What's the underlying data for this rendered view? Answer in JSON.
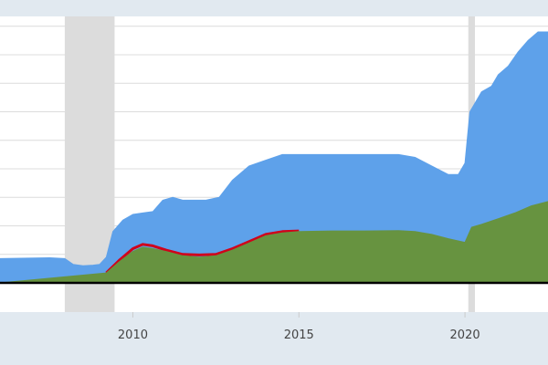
{
  "chart_data": {
    "type": "area",
    "title": "",
    "xlabel": "",
    "ylabel": "",
    "x_ticks": [
      "2010",
      "2015",
      "2020"
    ],
    "xlim": [
      2006.0,
      2022.5
    ],
    "ylim": [
      0,
      8.8
    ],
    "y_gridlines": [
      1,
      2,
      3,
      4,
      5,
      6,
      7,
      8,
      9
    ],
    "grid": true,
    "legend": "none",
    "shaded_periods": [
      {
        "start": 2007.95,
        "end": 2009.45
      },
      {
        "start": 2020.1,
        "end": 2020.3
      }
    ],
    "series": [
      {
        "type": "area",
        "color": "#5ea1ea",
        "x": [
          2006.0,
          2007.5,
          2007.95,
          2008.2,
          2008.5,
          2008.8,
          2009.0,
          2009.2,
          2009.4,
          2009.7,
          2010.0,
          2010.3,
          2010.6,
          2010.9,
          2011.2,
          2011.5,
          2011.8,
          2012.2,
          2012.6,
          2013.0,
          2013.5,
          2014.0,
          2014.5,
          2014.9,
          2015.5,
          2016.0,
          2016.5,
          2017.0,
          2017.5,
          2018.0,
          2018.5,
          2019.0,
          2019.5,
          2019.8,
          2020.0,
          2020.15,
          2020.3,
          2020.5,
          2020.8,
          2021.0,
          2021.3,
          2021.6,
          2021.9,
          2022.2,
          2022.5
        ],
        "values": [
          0.85,
          0.88,
          0.85,
          0.65,
          0.6,
          0.62,
          0.65,
          0.9,
          1.8,
          2.2,
          2.4,
          2.45,
          2.5,
          2.9,
          3.0,
          2.9,
          2.9,
          2.9,
          3.0,
          3.6,
          4.1,
          4.3,
          4.5,
          4.5,
          4.5,
          4.5,
          4.5,
          4.5,
          4.5,
          4.5,
          4.4,
          4.1,
          3.8,
          3.8,
          4.2,
          6.0,
          6.3,
          6.7,
          6.9,
          7.3,
          7.6,
          8.1,
          8.5,
          8.8,
          8.8
        ]
      },
      {
        "type": "line",
        "color": "#d0021b",
        "x": [
          2009.2,
          2009.6,
          2010.0,
          2010.3,
          2010.6,
          2011.0,
          2011.5,
          2012.0,
          2012.5,
          2013.0,
          2013.5,
          2014.0,
          2014.5,
          2015.0
        ],
        "values": [
          0.35,
          0.8,
          1.2,
          1.35,
          1.3,
          1.15,
          1.0,
          0.98,
          1.0,
          1.2,
          1.45,
          1.7,
          1.8,
          1.82
        ]
      },
      {
        "type": "area",
        "color": "#679340",
        "x": [
          2006.0,
          2009.2,
          2009.6,
          2010.0,
          2010.3,
          2010.6,
          2011.0,
          2011.5,
          2012.0,
          2012.5,
          2013.0,
          2013.5,
          2014.0,
          2014.5,
          2015.0,
          2016.0,
          2017.0,
          2018.0,
          2018.5,
          2019.0,
          2019.5,
          2020.0,
          2020.2,
          2020.5,
          2021.0,
          2021.5,
          2022.0,
          2022.5
        ],
        "values": [
          0,
          0.35,
          0.75,
          1.1,
          1.25,
          1.2,
          1.1,
          0.95,
          0.9,
          0.95,
          1.15,
          1.4,
          1.65,
          1.75,
          1.8,
          1.82,
          1.82,
          1.83,
          1.8,
          1.7,
          1.55,
          1.42,
          1.95,
          2.05,
          2.25,
          2.45,
          2.7,
          2.85
        ]
      }
    ]
  }
}
